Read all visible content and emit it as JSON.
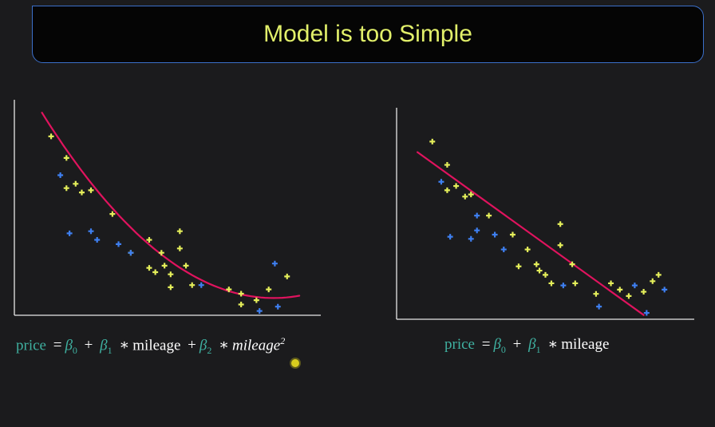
{
  "title": "Model is too Simple",
  "colors": {
    "title_text": "#e2f06a",
    "title_border": "#3b6fc9",
    "fit_line": "#e0135e",
    "series_yellow": "#e4ee5a",
    "series_blue": "#3e7ff0",
    "axis": "#e8e8e8",
    "formula_teal": "#3fb0a0"
  },
  "formulas": {
    "left": {
      "price": "price",
      "eq": "=",
      "b0": "β",
      "b0_sub": "0",
      "plus1": "+",
      "b1": "β",
      "b1_sub": "1",
      "star1": "∗",
      "mileage": "mileage",
      "plus2": "+",
      "b2": "β",
      "b2_sub": "2",
      "star2": "∗",
      "mileage_sq": "mileage",
      "sq_sup": "2"
    },
    "right": {
      "price": "price",
      "eq": "=",
      "b0": "β",
      "b0_sub": "0",
      "plus1": "+",
      "b1": "β",
      "b1_sub": "1",
      "star1": "∗",
      "mileage": "mileage"
    }
  },
  "chart_data": [
    {
      "type": "scatter",
      "title": "",
      "xlabel": "",
      "ylabel": "",
      "xlim": [
        0,
        100
      ],
      "ylim": [
        0,
        100
      ],
      "grid": false,
      "series": [
        {
          "color": "#e4ee5a",
          "marker": "plus",
          "points": [
            [
              12,
              83
            ],
            [
              17,
              73
            ],
            [
              17,
              59
            ],
            [
              20,
              61
            ],
            [
              22,
              57
            ],
            [
              25,
              58
            ],
            [
              32,
              47
            ],
            [
              38,
              29
            ],
            [
              44,
              35
            ],
            [
              44,
              22
            ],
            [
              46,
              20
            ],
            [
              48,
              29
            ],
            [
              49,
              23
            ],
            [
              51,
              19
            ],
            [
              51,
              13
            ],
            [
              54,
              39
            ],
            [
              54,
              31
            ],
            [
              56,
              23
            ],
            [
              58,
              14
            ],
            [
              70,
              12
            ],
            [
              74,
              10
            ],
            [
              74,
              5
            ],
            [
              79,
              7
            ],
            [
              83,
              12
            ],
            [
              89,
              18
            ]
          ]
        },
        {
          "color": "#3e7ff0",
          "marker": "plus",
          "points": [
            [
              15,
              65
            ],
            [
              18,
              38
            ],
            [
              25,
              39
            ],
            [
              27,
              35
            ],
            [
              34,
              33
            ],
            [
              38,
              29
            ],
            [
              61,
              14
            ],
            [
              80,
              2
            ],
            [
              85,
              24
            ],
            [
              86,
              4
            ]
          ]
        }
      ],
      "fit": {
        "type": "quadratic",
        "x": [
          9,
          93
        ],
        "y_start": 94,
        "y_end": 8,
        "y_min": 8
      }
    },
    {
      "type": "scatter",
      "title": "",
      "xlabel": "",
      "ylabel": "",
      "xlim": [
        0,
        100
      ],
      "ylim": [
        0,
        100
      ],
      "grid": false,
      "series": [
        {
          "color": "#e4ee5a",
          "marker": "plus",
          "points": [
            [
              12,
              84
            ],
            [
              17,
              73
            ],
            [
              17,
              61
            ],
            [
              20,
              63
            ],
            [
              23,
              58
            ],
            [
              25,
              59
            ],
            [
              31,
              49
            ],
            [
              39,
              40
            ],
            [
              41,
              25
            ],
            [
              44,
              33
            ],
            [
              47,
              26
            ],
            [
              48,
              23
            ],
            [
              50,
              21
            ],
            [
              52,
              17
            ],
            [
              55,
              45
            ],
            [
              55,
              35
            ],
            [
              59,
              26
            ],
            [
              60,
              17
            ],
            [
              67,
              12
            ],
            [
              72,
              17
            ],
            [
              75,
              14
            ],
            [
              78,
              11
            ],
            [
              83,
              13
            ],
            [
              86,
              18
            ],
            [
              88,
              21
            ]
          ]
        },
        {
          "color": "#3e7ff0",
          "marker": "plus",
          "points": [
            [
              15,
              65
            ],
            [
              18,
              39
            ],
            [
              25,
              38
            ],
            [
              27,
              49
            ],
            [
              27,
              42
            ],
            [
              33,
              40
            ],
            [
              36,
              33
            ],
            [
              56,
              16
            ],
            [
              68,
              6
            ],
            [
              80,
              16
            ],
            [
              84,
              3
            ],
            [
              90,
              14
            ]
          ]
        }
      ],
      "fit": {
        "type": "linear",
        "x": [
          7,
          83
        ],
        "y": [
          79,
          2
        ]
      }
    }
  ]
}
